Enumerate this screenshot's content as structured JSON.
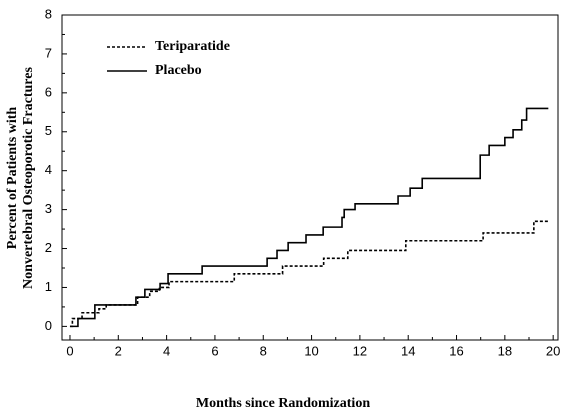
{
  "chart_data": {
    "type": "line",
    "step": "post",
    "y_label_lines": [
      "Percent of Patients with",
      "Nonvertebral Osteoporotic Fractures"
    ],
    "x_label": "Months since Randomization",
    "xlim": [
      -0.33,
      20.2
    ],
    "ylim": [
      -0.35,
      8
    ],
    "xticks": [
      0,
      2,
      4,
      6,
      8,
      10,
      12,
      14,
      16,
      18,
      20
    ],
    "yticks": [
      0,
      1,
      2,
      3,
      4,
      5,
      6,
      7,
      8
    ],
    "legend": "upper left",
    "series": [
      {
        "name": "Teriparatide",
        "color": "#000000",
        "line_style": "dotted",
        "x": [
          0,
          0.1,
          0.5,
          1.2,
          1.5,
          2.8,
          3.3,
          3.7,
          4.1,
          6.8,
          8.8,
          10.5,
          11.5,
          13.9,
          17.1,
          19.2,
          19.8
        ],
        "values": [
          0,
          0.2,
          0.35,
          0.45,
          0.55,
          0.75,
          0.9,
          1.0,
          1.15,
          1.35,
          1.55,
          1.75,
          1.95,
          2.2,
          2.4,
          2.7,
          2.7
        ]
      },
      {
        "name": "Placebo",
        "color": "#000000",
        "line_style": "solid",
        "x": [
          0,
          0.33,
          1.03,
          2.73,
          3.1,
          3.73,
          4.06,
          5.47,
          8.16,
          8.57,
          9.03,
          9.77,
          10.48,
          11.26,
          11.35,
          11.8,
          13.58,
          14.08,
          14.58,
          16.98,
          17.35,
          18.0,
          18.34,
          18.7,
          18.9,
          19.8
        ],
        "values": [
          0,
          0.2,
          0.55,
          0.75,
          0.95,
          1.1,
          1.35,
          1.55,
          1.75,
          1.95,
          2.15,
          2.35,
          2.55,
          2.8,
          3.0,
          3.15,
          3.35,
          3.55,
          3.8,
          4.4,
          4.65,
          4.85,
          5.05,
          5.3,
          5.6,
          5.6
        ]
      }
    ]
  }
}
